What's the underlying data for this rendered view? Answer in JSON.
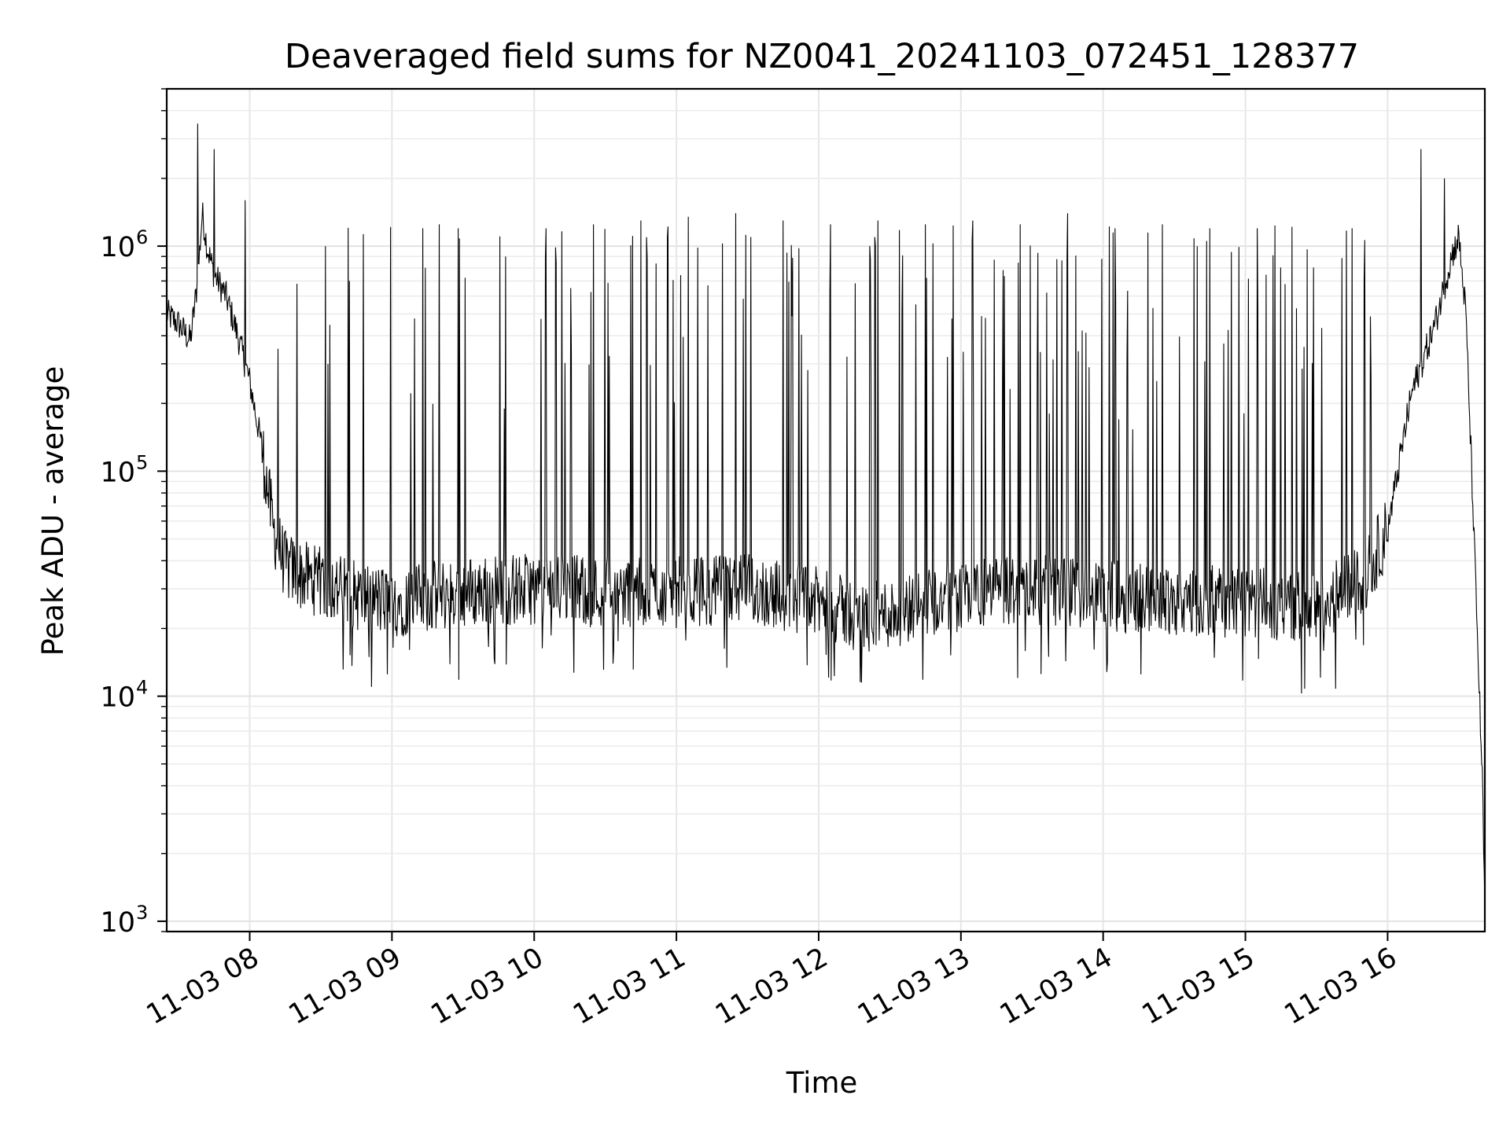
{
  "chart_data": {
    "type": "line",
    "title": "Deaveraged field sums for NZ0041_20241103_072451_128377",
    "xlabel": "Time",
    "ylabel": "Peak ADU - average",
    "y_scale": "log",
    "ylim": [
      900,
      5000000
    ],
    "xlim": [
      "2024-11-03 07:25",
      "2024-11-03 16:41"
    ],
    "x_tick_labels": [
      "11-03 08",
      "11-03 09",
      "11-03 10",
      "11-03 11",
      "11-03 12",
      "11-03 13",
      "11-03 14",
      "11-03 15",
      "11-03 16"
    ],
    "x_ticks": [
      "2024-11-03 08:00",
      "2024-11-03 09:00",
      "2024-11-03 10:00",
      "2024-11-03 11:00",
      "2024-11-03 12:00",
      "2024-11-03 13:00",
      "2024-11-03 14:00",
      "2024-11-03 15:00",
      "2024-11-03 16:00"
    ],
    "y_ticks": [
      {
        "value": 1000,
        "base": "10",
        "exp": "3"
      },
      {
        "value": 10000,
        "base": "10",
        "exp": "4"
      },
      {
        "value": 100000,
        "base": "10",
        "exp": "5"
      },
      {
        "value": 1000000,
        "base": "10",
        "exp": "6"
      }
    ],
    "grid": true,
    "line_color": "#000000",
    "series": [
      {
        "x": [
          "2024-11-03 07:25",
          "2024-11-03 07:30",
          "2024-11-03 07:35",
          "2024-11-03 07:38",
          "2024-11-03 07:40",
          "2024-11-03 07:42",
          "2024-11-03 07:45",
          "2024-11-03 07:50",
          "2024-11-03 07:55",
          "2024-11-03 08:00",
          "2024-11-03 08:05",
          "2024-11-03 08:10",
          "2024-11-03 08:15",
          "2024-11-03 08:20",
          "2024-11-03 08:30",
          "2024-11-03 08:45",
          "2024-11-03 09:00",
          "2024-11-03 09:30",
          "2024-11-03 10:00",
          "2024-11-03 10:30",
          "2024-11-03 11:00",
          "2024-11-03 11:30",
          "2024-11-03 12:00",
          "2024-11-03 12:20",
          "2024-11-03 12:40",
          "2024-11-03 13:00",
          "2024-11-03 13:30",
          "2024-11-03 14:00",
          "2024-11-03 14:30",
          "2024-11-03 15:00",
          "2024-11-03 15:30",
          "2024-11-03 15:50",
          "2024-11-03 16:00",
          "2024-11-03 16:10",
          "2024-11-03 16:20",
          "2024-11-03 16:27",
          "2024-11-03 16:30",
          "2024-11-03 16:33",
          "2024-11-03 16:36",
          "2024-11-03 16:40",
          "2024-11-03 16:41"
        ],
        "y": [
          500000,
          450000,
          380000,
          700000,
          1400000,
          1000000,
          750000,
          600000,
          400000,
          250000,
          130000,
          55000,
          38000,
          35000,
          32000,
          28000,
          26000,
          29000,
          30000,
          29000,
          29000,
          30000,
          26000,
          22000,
          25000,
          28000,
          30000,
          28000,
          27000,
          26000,
          25000,
          33000,
          55000,
          220000,
          450000,
          900000,
          1100000,
          500000,
          70000,
          4000,
          1100
        ]
      }
    ],
    "spikes": [
      {
        "x": "2024-11-03 07:38",
        "y": 3500000
      },
      {
        "x": "2024-11-03 07:45",
        "y": 2700000
      },
      {
        "x": "2024-11-03 07:58",
        "y": 1600000
      },
      {
        "x": "2024-11-03 08:12",
        "y": 350000
      },
      {
        "x": "2024-11-03 08:20",
        "y": 680000
      },
      {
        "x": "2024-11-03 08:32",
        "y": 1000000
      },
      {
        "x": "2024-11-03 08:42",
        "y": 700000
      },
      {
        "x": "2024-11-03 09:13",
        "y": 1200000
      },
      {
        "x": "2024-11-03 09:20",
        "y": 1250000
      },
      {
        "x": "2024-11-03 09:28",
        "y": 1200000
      },
      {
        "x": "2024-11-03 09:48",
        "y": 900000
      },
      {
        "x": "2024-11-03 10:05",
        "y": 1200000
      },
      {
        "x": "2024-11-03 10:25",
        "y": 1250000
      },
      {
        "x": "2024-11-03 10:45",
        "y": 1300000
      },
      {
        "x": "2024-11-03 11:05",
        "y": 1350000
      },
      {
        "x": "2024-11-03 11:25",
        "y": 1400000
      },
      {
        "x": "2024-11-03 11:45",
        "y": 1300000
      },
      {
        "x": "2024-11-03 12:05",
        "y": 1250000
      },
      {
        "x": "2024-11-03 12:25",
        "y": 1300000
      },
      {
        "x": "2024-11-03 12:45",
        "y": 1250000
      },
      {
        "x": "2024-11-03 13:05",
        "y": 1300000
      },
      {
        "x": "2024-11-03 13:25",
        "y": 1250000
      },
      {
        "x": "2024-11-03 13:45",
        "y": 1400000
      },
      {
        "x": "2024-11-03 14:05",
        "y": 1200000
      },
      {
        "x": "2024-11-03 14:25",
        "y": 1250000
      },
      {
        "x": "2024-11-03 14:45",
        "y": 1200000
      },
      {
        "x": "2024-11-03 15:05",
        "y": 1200000
      },
      {
        "x": "2024-11-03 15:25",
        "y": 1250000
      },
      {
        "x": "2024-11-03 15:45",
        "y": 1200000
      },
      {
        "x": "2024-11-03 16:14",
        "y": 2700000
      },
      {
        "x": "2024-11-03 16:24",
        "y": 2000000
      }
    ],
    "dips": [
      {
        "x": "2024-11-03 08:27",
        "y": 10000
      },
      {
        "x": "2024-11-03 08:58",
        "y": 12500
      },
      {
        "x": "2024-11-03 12:18",
        "y": 11500
      },
      {
        "x": "2024-11-03 14:16",
        "y": 12500
      },
      {
        "x": "2024-11-03 14:47",
        "y": 13000
      },
      {
        "x": "2024-11-03 15:25",
        "y": 10800
      },
      {
        "x": "2024-11-03 15:38",
        "y": 10800
      }
    ]
  }
}
